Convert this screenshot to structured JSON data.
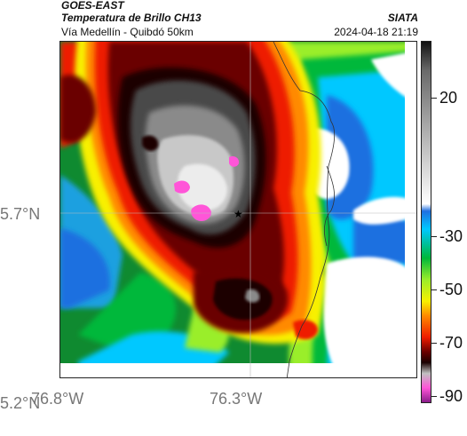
{
  "header": {
    "satellite": "GOES-EAST",
    "product": "Temperatura de Brillo CH13",
    "route": "Vía Medellín - Quibdó 50km",
    "organization": "SIATA",
    "timestamp": "2024-04-18 21:19"
  },
  "axes": {
    "y_ticks": [
      "5.7°N",
      "5.2°N"
    ],
    "x_ticks": [
      "76.8°W",
      "76.3°W"
    ]
  },
  "colorbar": {
    "tick_labels": [
      "20",
      "-30",
      "-50",
      "-70",
      "-90"
    ],
    "colors": [
      "#111111",
      "#6a6a6a",
      "#ffffff",
      "#1e6fe0",
      "#00c8ff",
      "#00b83a",
      "#9aee2a",
      "#f8f000",
      "#ff8a00",
      "#ee1c00",
      "#6a0000",
      "#1a0000",
      "#c0c0c0",
      "#ff55d8",
      "#8a1c8a"
    ]
  },
  "map": {
    "marker": "★"
  }
}
